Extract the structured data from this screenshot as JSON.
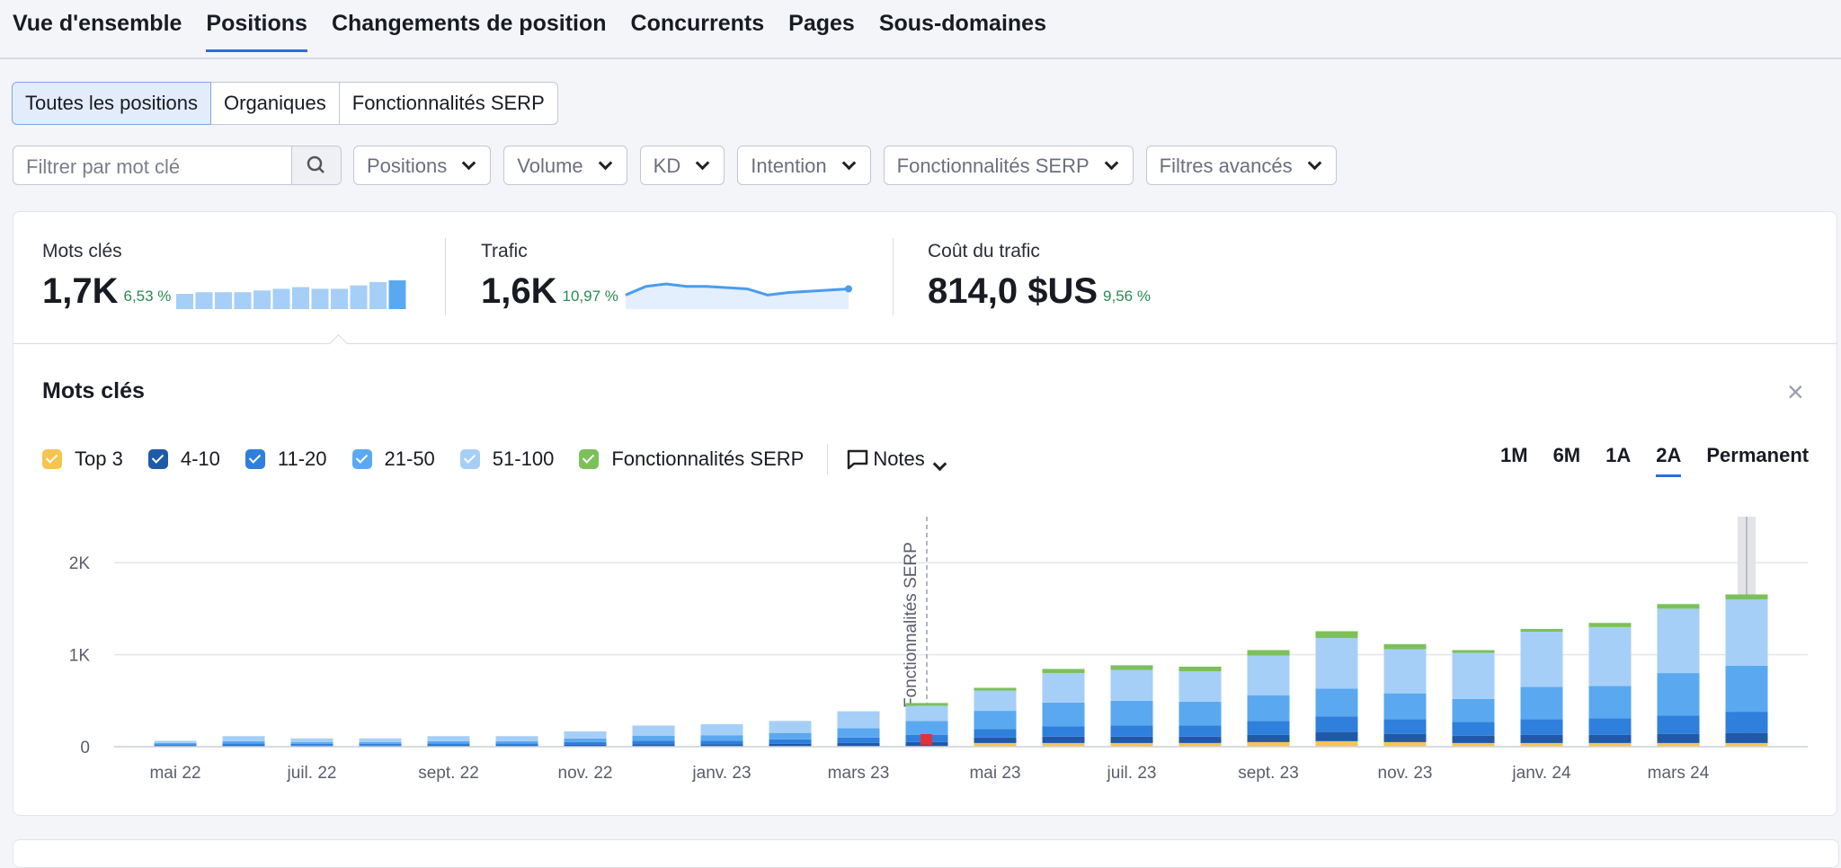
{
  "tabs": [
    "Vue d'ensemble",
    "Positions",
    "Changements de position",
    "Concurrents",
    "Pages",
    "Sous-domaines"
  ],
  "subtabs": [
    "Toutes les positions",
    "Organiques",
    "Fonctionnalités SERP"
  ],
  "search_placeholder": "Filtrer par mot clé",
  "filters": [
    "Positions",
    "Volume",
    "KD",
    "Intention",
    "Fonctionnalités SERP",
    "Filtres avancés"
  ],
  "metrics": [
    {
      "label": "Mots clés",
      "value": "1,7K",
      "change": "6,53 %",
      "sparkline": [
        9,
        10,
        10,
        10,
        11,
        12,
        13,
        12,
        12,
        14,
        16,
        17
      ]
    },
    {
      "label": "Trafic",
      "value": "1,6K",
      "change": "10,97 %",
      "sparkline": [
        10,
        17,
        19,
        17,
        17,
        16,
        15,
        10,
        12,
        13,
        14,
        15
      ]
    },
    {
      "label": "Coût du trafic",
      "value": "814,0 $US",
      "change": "9,56 %"
    }
  ],
  "panel": {
    "title": "Mots clés",
    "notes": "Notes",
    "close": "×",
    "ranges": [
      "1M",
      "6M",
      "1A",
      "2A",
      "Permanent"
    ]
  },
  "chart_data": {
    "type": "stacked-bar",
    "categories": [
      "mai 22",
      null,
      "juil. 22",
      null,
      "sept. 22",
      null,
      "nov. 22",
      null,
      "janv. 23",
      null,
      "mars 23",
      null,
      "mai 23",
      null,
      "juil. 23",
      null,
      "sept. 23",
      null,
      "nov. 23",
      null,
      "janv. 24",
      null,
      "mars 24",
      null
    ],
    "series": [
      {
        "name": "Top 3",
        "color": "#f5c451",
        "values": [
          0,
          0,
          0,
          0,
          0,
          0,
          0,
          0,
          0,
          0,
          0,
          0,
          40,
          40,
          40,
          40,
          50,
          60,
          50,
          40,
          40,
          40,
          40,
          40
        ]
      },
      {
        "name": "4-10",
        "color": "#1f5aa6",
        "values": [
          10,
          15,
          12,
          12,
          15,
          15,
          20,
          25,
          25,
          30,
          40,
          50,
          60,
          70,
          70,
          70,
          80,
          100,
          90,
          80,
          90,
          90,
          100,
          110
        ]
      },
      {
        "name": "11-20",
        "color": "#2f7fdc",
        "values": [
          15,
          20,
          18,
          18,
          20,
          20,
          30,
          40,
          40,
          50,
          60,
          80,
          90,
          110,
          120,
          120,
          150,
          170,
          160,
          150,
          170,
          180,
          200,
          230
        ]
      },
      {
        "name": "21-50",
        "color": "#5aa9f0",
        "values": [
          15,
          25,
          20,
          20,
          25,
          25,
          40,
          55,
          60,
          70,
          100,
          150,
          200,
          260,
          270,
          260,
          280,
          300,
          280,
          250,
          350,
          350,
          460,
          500
        ]
      },
      {
        "name": "51-100",
        "color": "#a6cff7",
        "values": [
          24,
          55,
          40,
          40,
          55,
          55,
          77,
          110,
          120,
          130,
          185,
          165,
          220,
          320,
          335,
          330,
          430,
          550,
          480,
          500,
          600,
          640,
          700,
          720
        ]
      },
      {
        "name": "Fonctionnalités SERP",
        "color": "#7cc05a",
        "values": [
          0,
          0,
          0,
          0,
          0,
          0,
          0,
          0,
          0,
          0,
          0,
          30,
          30,
          45,
          50,
          50,
          60,
          75,
          55,
          30,
          30,
          45,
          50,
          55
        ]
      }
    ],
    "annotation": "Fonctionnalités SERP",
    "ylim": [
      0,
      2500
    ],
    "yticks": [
      0,
      {
        "value": 1000,
        "label": "1K"
      },
      {
        "value": 2000,
        "label": "2K"
      }
    ],
    "grid": true
  }
}
